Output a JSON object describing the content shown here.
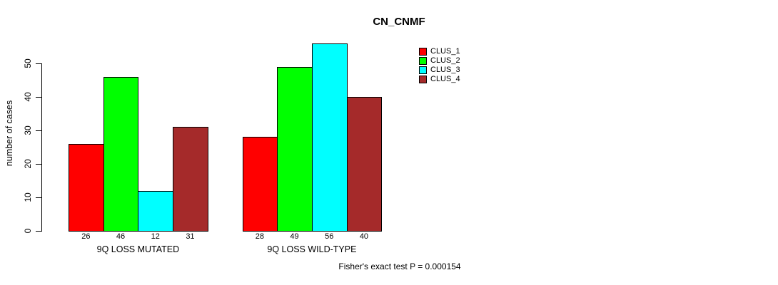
{
  "chart_data": {
    "type": "bar",
    "title": "CN_CNMF",
    "ylabel": "number of cases",
    "xlabel": "",
    "ylim": [
      0,
      50
    ],
    "yticks": [
      0,
      10,
      20,
      30,
      40,
      50
    ],
    "grid": false,
    "legend_position": "top-right",
    "categories": [
      "9Q LOSS MUTATED",
      "9Q LOSS WILD-TYPE"
    ],
    "series": [
      {
        "name": "CLUS_1",
        "color": "#FF0000",
        "values": [
          26,
          28
        ]
      },
      {
        "name": "CLUS_2",
        "color": "#00FF00",
        "values": [
          46,
          49
        ]
      },
      {
        "name": "CLUS_3",
        "color": "#00FFFF",
        "values": [
          12,
          56
        ]
      },
      {
        "name": "CLUS_4",
        "color": "#A52A2A",
        "values": [
          31,
          40
        ]
      }
    ],
    "show_value_labels": true,
    "bar_border_color": "#000000",
    "axis_color": "#000000",
    "annotation": "Fisher's exact test P = 0.000154"
  }
}
